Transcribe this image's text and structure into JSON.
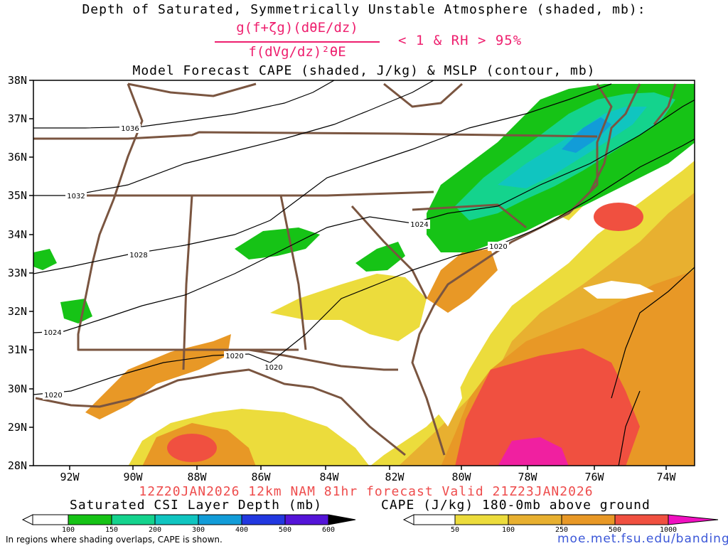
{
  "title": {
    "line1": "Depth of Saturated, Symmetrically Unstable Atmosphere (shaded, mb):",
    "formula_numerator": "g(f+ζg)(dθE/dz)",
    "formula_denominator": "f(dVg/dz)²θE",
    "formula_condition": "< 1 & RH > 95%",
    "line3": "Model Forecast CAPE (shaded, J/kg) & MSLP (contour, mb)"
  },
  "map": {
    "lat_labels": [
      "38N",
      "37N",
      "36N",
      "35N",
      "34N",
      "33N",
      "32N",
      "31N",
      "30N",
      "29N",
      "28N"
    ],
    "lon_labels": [
      "92W",
      "90W",
      "88W",
      "86W",
      "84W",
      "82W",
      "80W",
      "78W",
      "76W",
      "74W"
    ],
    "isobar_labels": [
      "1036",
      "1032",
      "1028",
      "1024",
      "1024",
      "1020",
      "1020",
      "1020",
      "1020"
    ]
  },
  "valid_line": "12Z20JAN2026 12km NAM 81hr forecast Valid 21Z23JAN2026",
  "colorbars": {
    "csi": {
      "label": "Saturated CSI Layer Depth (mb)",
      "ticks": [
        "100",
        "150",
        "200",
        "300",
        "400",
        "500",
        "600"
      ],
      "colors": [
        "#16c316",
        "#14d38d",
        "#10c5c0",
        "#129cd8",
        "#2238e0",
        "#5414d8",
        "#a014b0"
      ]
    },
    "cape": {
      "label": "CAPE (J/kg) 180-0mb above ground",
      "ticks": [
        "50",
        "100",
        "250",
        "500",
        "1000"
      ],
      "colors": [
        "#ecdc3c",
        "#e8b030",
        "#e89826",
        "#f05040",
        "#f02080",
        "#f010c0"
      ]
    }
  },
  "footnote": "In regions where shading overlaps, CAPE is shown.",
  "credit": "moe.met.fsu.edu/banding"
}
